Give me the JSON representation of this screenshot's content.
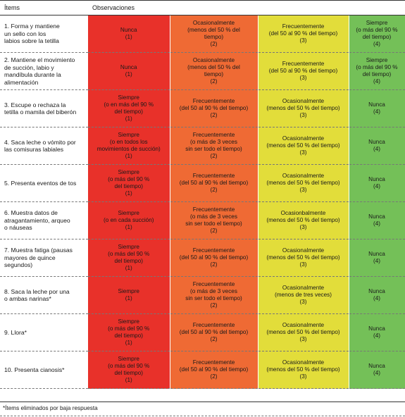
{
  "header": {
    "items": "Ítems",
    "observations": "Observaciones"
  },
  "colors": {
    "red": "#e8312a",
    "orange": "#ef6a34",
    "yellow": "#e2dd3a",
    "green": "#74c058"
  },
  "rows": [
    {
      "item": "1. Forma y mantiene\nun sello con los\nlabios sobre la tetilla",
      "cells": [
        "Nunca\n(1)",
        "Ocasionalmente\n(menos del 50 % del\ntiempo)\n(2)",
        "Frecuentemente\n(del 50 al 90 % del tiempo)\n(3)",
        "Siempre\n(o más del 90 %\ndel tiempo)\n(4)"
      ]
    },
    {
      "item": "2. Mantiene el movimiento\nde succión, labio y\nmandíbula durante la\nalimentación",
      "cells": [
        "Nunca\n(1)",
        "Ocasionalmente\n(menos del 50 % del\ntiempo)\n(2)",
        "Frecuentemente\n(del 50 al 90 % del tiempo)\n(3)",
        "Siempre\n(o más del 90 %\ndel tiempo)\n(4)"
      ]
    },
    {
      "item": "3. Escupe o rechaza la\ntetilla o mamila del biberón",
      "cells": [
        "Siempre\n(o en más del 90 %\ndel tiempo)\n(1)",
        "Frecuentemente\n(del 50 al 90 % del tiempo)\n(2)",
        "Ocasionalmente\n(menos del 50 % del tiempo)\n(3)",
        "Nunca\n(4)"
      ]
    },
    {
      "item": "4. Saca leche o vómito por\nlas comisuras labiales",
      "cells": [
        "Siempre\n(o en todos los\nmovimientos de succión)\n(1)",
        "Frecuentemente\n(o más de 3 veces\nsin ser todo el tiempo)\n(2)",
        "Ocasionalmente\n(menos del 50 % del tiempo)\n(3)",
        "Nunca\n(4)"
      ]
    },
    {
      "item": "5. Presenta eventos de tos",
      "cells": [
        "Siempre\n(o más del 90 %\ndel tiempo)\n(1)",
        "Frecuentemente\n(del 50 al 90 % del tiempo)\n(2)",
        "Ocasionalmente\n(menos del 50 % del tiempo)\n(3)",
        "Nunca\n(4)"
      ]
    },
    {
      "item": "6. Muestra datos de\natragantamiento, arqueo\no náuseas",
      "cells": [
        "Siempre\n(o en cada succión)\n(1)",
        "Frecuentemente\n(o más de 3 veces\nsin ser todo el tiempo)\n(2)",
        "Ocasionbalmente\n(menos del 50 % del tiempo)\n(3)",
        "Nunca\n(4)"
      ]
    },
    {
      "item": "7. Muestra fatiga (pausas\nmayores de quince\nsegundos)",
      "cells": [
        "Siempre\n(o más del 90 %\ndel tiempo)\n(1)",
        "Frecuentemente\n(del 50 al 90 % del tiempo)\n(2)",
        "Ocasionalmente\n(menos del 50 % del tiempo)\n(3)",
        "Nunca\n(4)"
      ]
    },
    {
      "item": "8. Saca la leche por una\no ambas narinas*",
      "cells": [
        "Siempre\n(1)",
        "Frecuentemente\n(o más de 3 veces\nsin ser todo el tiempo)\n(2)",
        "Ocasionalmente\n(menos de tres veces)\n(3)",
        "Nunca\n(4)"
      ]
    },
    {
      "item": "9. Llora*",
      "cells": [
        "Siempre\n(o más del 90 %\ndel tiempo)\n(1)",
        "Frecuentemente\n(del 50 al 90 % del tiempo)\n(2)",
        "Ocasionalmente\n(menos del 50 % del tiempo)\n(3)",
        "Nunca\n(4)"
      ]
    },
    {
      "item": "10. Presenta cianosis*",
      "cells": [
        "Siempre\n(o más del 90 %\ndel tiempo)\n(1)",
        "Frecuentemente\n(del 50 al 90 % del tiempo)\n(2)",
        "Ocasionalmente\n(menos del 50 % del tiempo)\n(3)",
        "Nunca\n(4)"
      ]
    }
  ],
  "footnote": "*Ítems eliminados por baja respuesta"
}
